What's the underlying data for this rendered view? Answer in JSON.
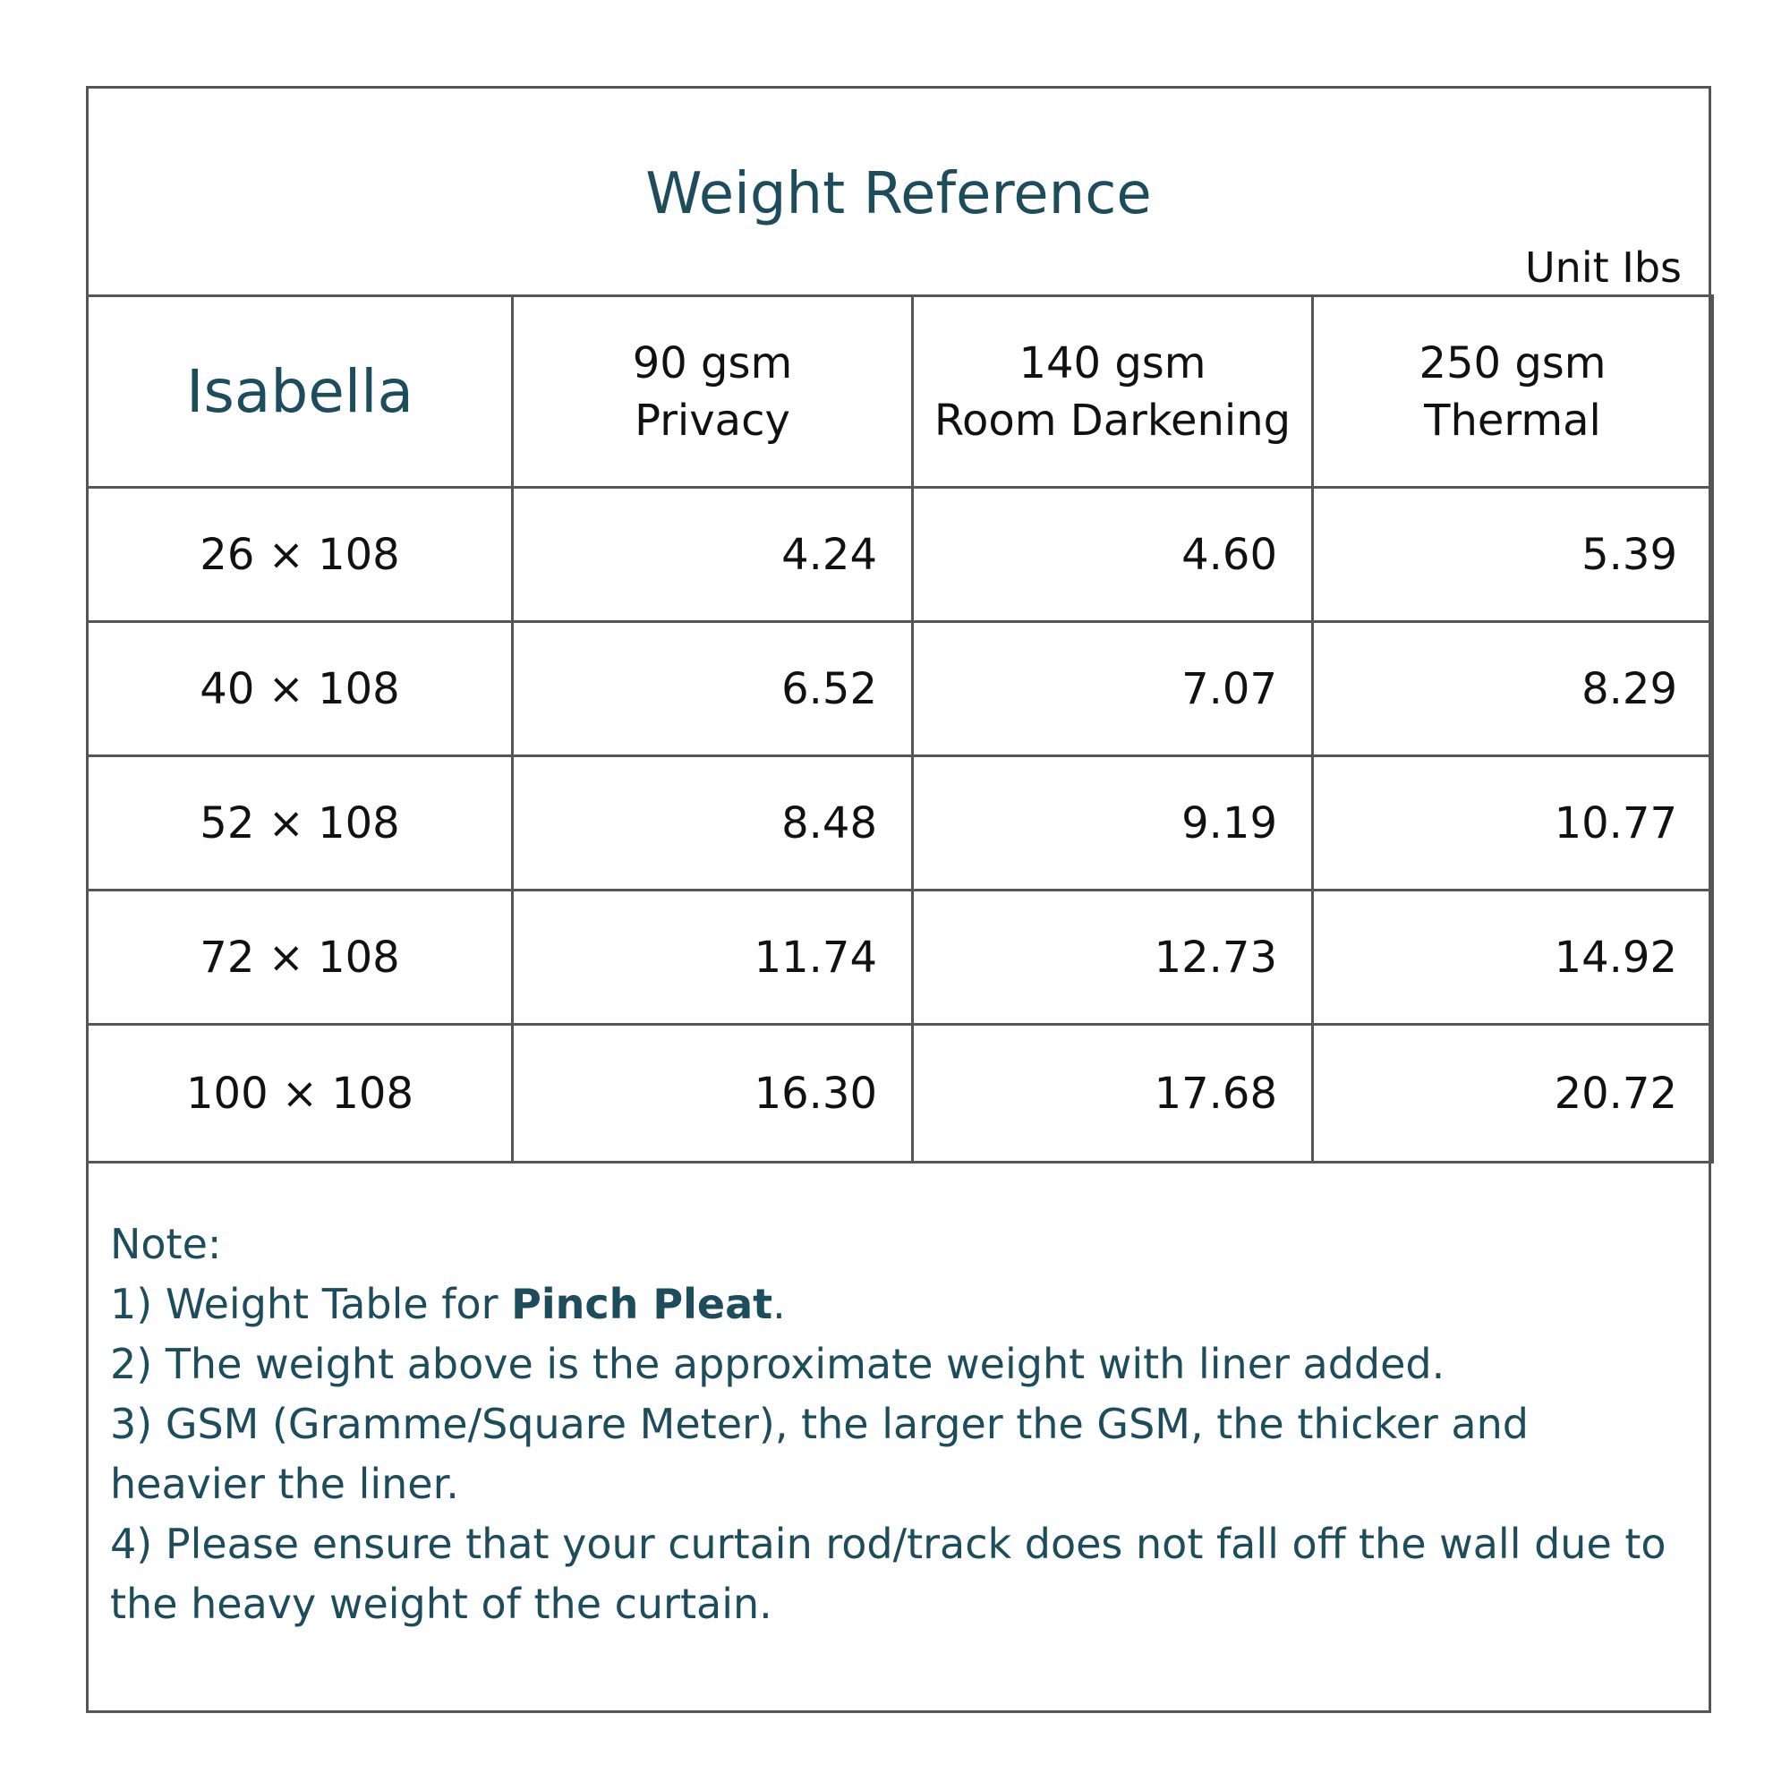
{
  "title": "Weight Reference",
  "unit_label": "Unit Ibs",
  "table": {
    "model": "Isabella",
    "columns": [
      {
        "line1": "90 gsm",
        "line2": "Privacy"
      },
      {
        "line1": "140 gsm",
        "line2": "Room Darkening"
      },
      {
        "line1": "250 gsm",
        "line2": "Thermal"
      }
    ],
    "rows": [
      {
        "size": "26 × 108",
        "values": [
          "4.24",
          "4.60",
          "5.39"
        ]
      },
      {
        "size": "40 × 108",
        "values": [
          "6.52",
          "7.07",
          "8.29"
        ]
      },
      {
        "size": "52 × 108",
        "values": [
          "8.48",
          "9.19",
          "10.77"
        ]
      },
      {
        "size": "72 × 108",
        "values": [
          "11.74",
          "12.73",
          "14.92"
        ]
      },
      {
        "size": "100 × 108",
        "values": [
          "16.30",
          "17.68",
          "20.72"
        ]
      }
    ]
  },
  "notes": {
    "heading": "Note:",
    "n1_prefix": "1) Weight Table for ",
    "n1_bold": "Pinch Pleat",
    "n1_suffix": ".",
    "n2": "2) The weight above is the approximate weight with liner added.",
    "n3": "3) GSM (Gramme/Square Meter), the larger the GSM, the thicker and heavier the liner.",
    "n4": "4) Please ensure that your curtain rod/track does not fall off the wall due to the heavy weight of the curtain."
  }
}
